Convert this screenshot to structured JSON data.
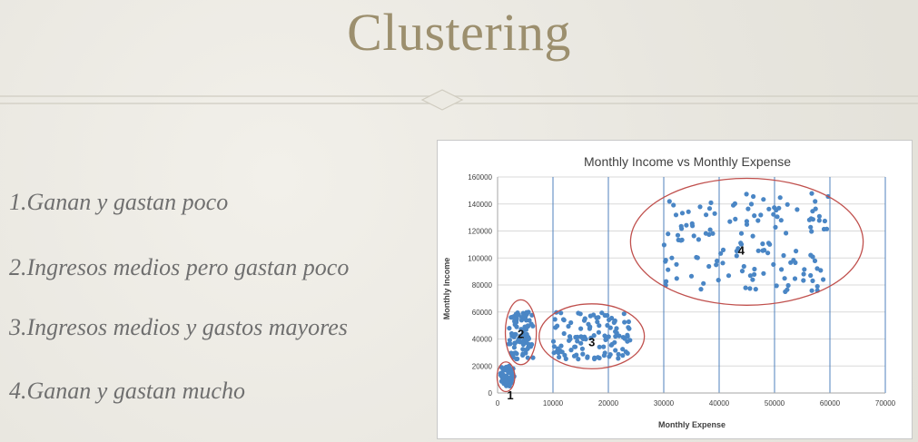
{
  "slide": {
    "title": "Clustering",
    "bullets": [
      "1.Ganan y gastan poco",
      "2.Ingresos medios pero gastan poco",
      "3.Ingresos medios y gastos mayores",
      "4.Ganan y gastan mucho"
    ]
  },
  "colors": {
    "title": "#9c8f6e",
    "bullet_text": "#6f6f6f",
    "points": "#4a86c5",
    "ellipses": "#c0504d",
    "vertical_gridlines": "#4f81bd",
    "horizontal_gridlines": "#d9d9d9"
  },
  "chart_data": {
    "type": "scatter",
    "title": "Monthly Income vs Monthly Expense",
    "xlabel": "Monthly Expense",
    "ylabel": "Monthly Income",
    "xlim": [
      0,
      70000
    ],
    "ylim": [
      0,
      160000
    ],
    "x_ticks": [
      "0",
      "10000",
      "20000",
      "30000",
      "40000",
      "50000",
      "60000",
      "70000"
    ],
    "y_ticks": [
      "0",
      "20000",
      "40000",
      "60000",
      "80000",
      "100000",
      "120000",
      "140000",
      "160000"
    ],
    "grid": {
      "vertical": true,
      "horizontal": true
    },
    "clusters": [
      {
        "label": "1",
        "x_range": [
          500,
          3000
        ],
        "y_range": [
          5000,
          20000
        ],
        "count": 55,
        "center": [
          1500,
          12000
        ],
        "radii": [
          1600,
          11000
        ]
      },
      {
        "label": "2",
        "x_range": [
          2000,
          6500
        ],
        "y_range": [
          25000,
          60000
        ],
        "count": 90,
        "center": [
          4200,
          45000
        ],
        "radii": [
          2800,
          24000
        ]
      },
      {
        "label": "3",
        "x_range": [
          10000,
          24000
        ],
        "y_range": [
          25000,
          60000
        ],
        "count": 110,
        "center": [
          17000,
          42000
        ],
        "radii": [
          9500,
          24000
        ]
      },
      {
        "label": "4",
        "x_range": [
          30000,
          60000
        ],
        "y_range": [
          75000,
          148000
        ],
        "count": 140,
        "center": [
          45000,
          112000
        ],
        "radii": [
          21000,
          47000
        ]
      }
    ],
    "cluster_label_positions": [
      [
        2300,
        -1500
      ],
      [
        4200,
        44000
      ],
      [
        17000,
        38000
      ],
      [
        44000,
        106000
      ]
    ]
  }
}
